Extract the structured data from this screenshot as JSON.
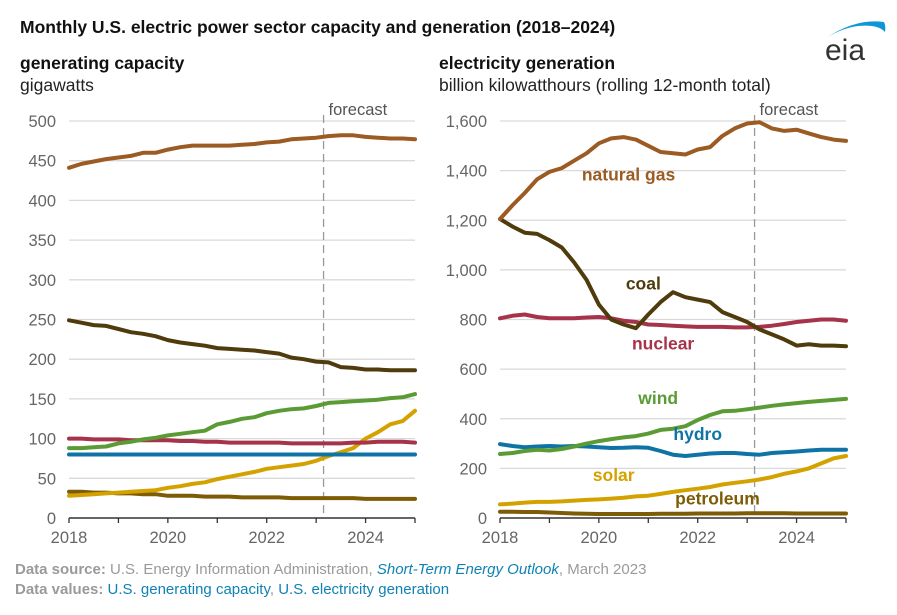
{
  "title": "Monthly U.S. electric power sector capacity and generation (2018–2024)",
  "logo": {
    "text": "eia",
    "icon": "eia-logo-icon",
    "arc_color": "#0f96d7",
    "text_color": "#333333"
  },
  "footer": {
    "source_label": "Data source:",
    "source_text": "U.S. Energy Information Administration,",
    "source_link": "Short-Term Energy Outlook",
    "source_date": ", March 2023",
    "values_label": "Data values:",
    "values_link_1": "U.S. generating capacity",
    "values_sep": ",",
    "values_link_2": "U.S. electricity generation"
  },
  "colors": {
    "natural_gas": "#9b5b23",
    "coal": "#4f3b0b",
    "nuclear": "#a6334a",
    "wind": "#5b9b35",
    "hydro": "#0f74a5",
    "solar": "#d4a200",
    "petroleum": "#7d5c05",
    "grid": "#d9d9d9",
    "axis": "#333333",
    "tick_label": "#666666",
    "forecast": "#999999"
  },
  "chart_data": [
    {
      "type": "line",
      "title": "generating capacity",
      "ylabel": "gigawatts",
      "xlabel": "",
      "xlim": [
        2018,
        2025
      ],
      "ylim": [
        0,
        500
      ],
      "x_ticks": [
        2018,
        2020,
        2022,
        2024
      ],
      "x_tick_labels": [
        "2018",
        "2020",
        "2022",
        "2024"
      ],
      "y_ticks": [
        0,
        50,
        100,
        150,
        200,
        250,
        300,
        350,
        400,
        450,
        500
      ],
      "y_tick_labels": [
        "0",
        "50",
        "100",
        "150",
        "200",
        "250",
        "300",
        "350",
        "400",
        "450",
        "500"
      ],
      "grid": true,
      "forecast_start": 2023.15,
      "forecast_label": "forecast",
      "x": [
        2018.0,
        2018.25,
        2018.5,
        2018.75,
        2019.0,
        2019.25,
        2019.5,
        2019.75,
        2020.0,
        2020.25,
        2020.5,
        2020.75,
        2021.0,
        2021.25,
        2021.5,
        2021.75,
        2022.0,
        2022.25,
        2022.5,
        2022.75,
        2023.0,
        2023.25,
        2023.5,
        2023.75,
        2024.0,
        2024.25,
        2024.5,
        2024.75,
        2025.0
      ],
      "series": [
        {
          "name": "natural gas",
          "key": "natural_gas",
          "values": [
            441,
            446,
            449,
            452,
            454,
            456,
            460,
            460,
            464,
            467,
            469,
            469,
            469,
            469,
            470,
            471,
            473,
            474,
            477,
            478,
            479,
            481,
            482,
            482,
            480,
            479,
            478,
            478,
            477
          ]
        },
        {
          "name": "coal",
          "key": "coal",
          "values": [
            249,
            246,
            243,
            242,
            238,
            234,
            232,
            229,
            224,
            221,
            219,
            217,
            214,
            213,
            212,
            211,
            209,
            207,
            202,
            200,
            197,
            196,
            190,
            189,
            187,
            187,
            186,
            186,
            186
          ]
        },
        {
          "name": "wind",
          "key": "wind",
          "values": [
            88,
            88,
            89,
            90,
            94,
            96,
            99,
            101,
            104,
            106,
            108,
            110,
            118,
            121,
            125,
            127,
            132,
            135,
            137,
            138,
            141,
            145,
            146,
            147,
            148,
            149,
            151,
            152,
            156
          ]
        },
        {
          "name": "nuclear",
          "key": "nuclear",
          "values": [
            100,
            100,
            99,
            99,
            99,
            98,
            98,
            98,
            98,
            97,
            97,
            96,
            96,
            95,
            95,
            95,
            95,
            95,
            94,
            94,
            94,
            94,
            94,
            95,
            95,
            96,
            96,
            96,
            95
          ]
        },
        {
          "name": "hydro",
          "key": "hydro",
          "values": [
            80,
            80,
            80,
            80,
            80,
            80,
            80,
            80,
            80,
            80,
            80,
            80,
            80,
            80,
            80,
            80,
            80,
            80,
            80,
            80,
            80,
            80,
            80,
            80,
            80,
            80,
            80,
            80,
            80
          ]
        },
        {
          "name": "solar",
          "key": "solar",
          "values": [
            28,
            29,
            30,
            31,
            32,
            33,
            34,
            35,
            38,
            40,
            43,
            45,
            49,
            52,
            55,
            58,
            62,
            64,
            66,
            68,
            72,
            78,
            83,
            88,
            100,
            108,
            118,
            122,
            135
          ]
        },
        {
          "name": "petroleum",
          "key": "petroleum",
          "values": [
            33,
            33,
            32,
            32,
            31,
            31,
            30,
            30,
            28,
            28,
            28,
            27,
            27,
            27,
            26,
            26,
            26,
            26,
            25,
            25,
            25,
            25,
            25,
            25,
            24,
            24,
            24,
            24,
            24
          ]
        }
      ]
    },
    {
      "type": "line",
      "title": "electricity generation",
      "ylabel": "billion kilowatthours (rolling 12-month total)",
      "xlabel": "",
      "xlim": [
        2018,
        2025
      ],
      "ylim": [
        0,
        1600
      ],
      "x_ticks": [
        2018,
        2020,
        2022,
        2024
      ],
      "x_tick_labels": [
        "2018",
        "2020",
        "2022",
        "2024"
      ],
      "y_ticks": [
        0,
        200,
        400,
        600,
        800,
        1000,
        1200,
        1400,
        1600
      ],
      "y_tick_labels": [
        "0",
        "200",
        "400",
        "600",
        "800",
        "1,000",
        "1,200",
        "1,400",
        "1,600"
      ],
      "grid": true,
      "forecast_start": 2023.15,
      "forecast_label": "forecast",
      "x": [
        2018.0,
        2018.25,
        2018.5,
        2018.75,
        2019.0,
        2019.25,
        2019.5,
        2019.75,
        2020.0,
        2020.25,
        2020.5,
        2020.75,
        2021.0,
        2021.25,
        2021.5,
        2021.75,
        2022.0,
        2022.25,
        2022.5,
        2022.75,
        2023.0,
        2023.25,
        2023.5,
        2023.75,
        2024.0,
        2024.25,
        2024.5,
        2024.75,
        2025.0
      ],
      "series": [
        {
          "name": "natural gas",
          "key": "natural_gas",
          "label_at": [
            2020.6,
            1360
          ],
          "values": [
            1205,
            1260,
            1310,
            1365,
            1395,
            1410,
            1440,
            1470,
            1510,
            1530,
            1535,
            1525,
            1500,
            1475,
            1470,
            1465,
            1485,
            1495,
            1540,
            1570,
            1590,
            1595,
            1570,
            1560,
            1565,
            1550,
            1535,
            1525,
            1520
          ]
        },
        {
          "name": "coal",
          "key": "coal",
          "label_at": [
            2020.9,
            920
          ],
          "values": [
            1205,
            1175,
            1150,
            1145,
            1120,
            1090,
            1030,
            960,
            860,
            800,
            780,
            765,
            820,
            870,
            910,
            890,
            880,
            870,
            830,
            810,
            790,
            760,
            740,
            720,
            695,
            700,
            695,
            695,
            692
          ]
        },
        {
          "name": "nuclear",
          "key": "nuclear",
          "label_at": [
            2021.3,
            680
          ],
          "values": [
            805,
            815,
            820,
            810,
            805,
            805,
            805,
            808,
            810,
            805,
            795,
            790,
            780,
            778,
            775,
            772,
            770,
            770,
            770,
            768,
            768,
            770,
            775,
            782,
            790,
            795,
            800,
            800,
            795
          ]
        },
        {
          "name": "wind",
          "key": "wind",
          "label_at": [
            2021.2,
            460
          ],
          "values": [
            258,
            262,
            270,
            275,
            272,
            278,
            288,
            300,
            310,
            318,
            325,
            330,
            340,
            355,
            360,
            370,
            395,
            415,
            430,
            432,
            438,
            445,
            452,
            458,
            463,
            468,
            472,
            476,
            480
          ]
        },
        {
          "name": "hydro",
          "key": "hydro",
          "label_at": [
            2022.0,
            315
          ],
          "values": [
            298,
            290,
            285,
            288,
            290,
            288,
            290,
            288,
            285,
            282,
            283,
            285,
            283,
            270,
            255,
            250,
            255,
            260,
            262,
            262,
            258,
            255,
            262,
            265,
            268,
            272,
            275,
            275,
            275
          ]
        },
        {
          "name": "solar",
          "key": "solar",
          "label_at": [
            2020.3,
            150
          ],
          "values": [
            55,
            58,
            62,
            65,
            65,
            67,
            70,
            73,
            75,
            78,
            82,
            87,
            90,
            97,
            105,
            112,
            118,
            125,
            135,
            142,
            148,
            155,
            165,
            178,
            188,
            200,
            220,
            240,
            250
          ]
        },
        {
          "name": "petroleum",
          "key": "petroleum",
          "label_at": [
            2022.4,
            55
          ],
          "values": [
            25,
            25,
            24,
            24,
            22,
            20,
            18,
            17,
            16,
            16,
            16,
            16,
            16,
            17,
            17,
            17,
            18,
            18,
            18,
            18,
            19,
            19,
            19,
            19,
            18,
            18,
            18,
            18,
            18
          ]
        }
      ]
    }
  ]
}
